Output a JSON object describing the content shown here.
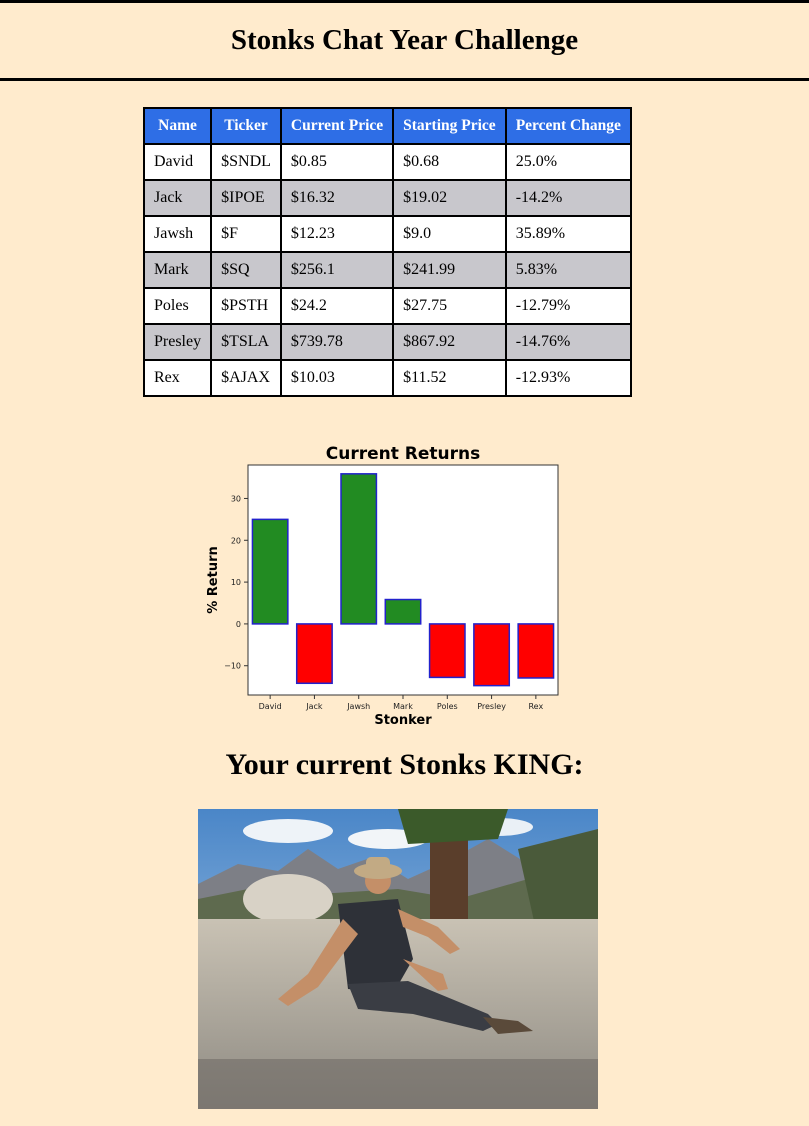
{
  "page": {
    "title": "Stonks Chat Year Challenge",
    "king_heading": "Your current Stonks KING:"
  },
  "table": {
    "headers": [
      "Name",
      "Ticker",
      "Current Price",
      "Starting Price",
      "Percent Change"
    ],
    "rows": [
      [
        "David",
        "$SNDL",
        "$0.85",
        "$0.68",
        "25.0%"
      ],
      [
        "Jack",
        "$IPOE",
        "$16.32",
        "$19.02",
        "-14.2%"
      ],
      [
        "Jawsh",
        "$F",
        "$12.23",
        "$9.0",
        "35.89%"
      ],
      [
        "Mark",
        "$SQ",
        "$256.1",
        "$241.99",
        "5.83%"
      ],
      [
        "Poles",
        "$PSTH",
        "$24.2",
        "$27.75",
        "-12.79%"
      ],
      [
        "Presley",
        "$TSLA",
        "$739.78",
        "$867.92",
        "-14.76%"
      ],
      [
        "Rex",
        "$AJAX",
        "$10.03",
        "$11.52",
        "-12.93%"
      ]
    ]
  },
  "chart_data": {
    "type": "bar",
    "title": "Current Returns",
    "xlabel": "Stonker",
    "ylabel": "% Return",
    "categories": [
      "David",
      "Jack",
      "Jawsh",
      "Mark",
      "Poles",
      "Presley",
      "Rex"
    ],
    "values": [
      25.0,
      -14.2,
      35.89,
      5.83,
      -12.79,
      -14.76,
      -12.93
    ],
    "yticks": [
      -10,
      0,
      10,
      20,
      30
    ],
    "ytick_labels": [
      "−10",
      "0",
      "10",
      "20",
      "30"
    ],
    "ylim": [
      -17,
      38
    ],
    "positive_color": "#228b22",
    "negative_color": "#ff0000",
    "edge_color": "#2222cc",
    "grid": false
  },
  "photo": {
    "icon": "stonks-king-photo"
  }
}
